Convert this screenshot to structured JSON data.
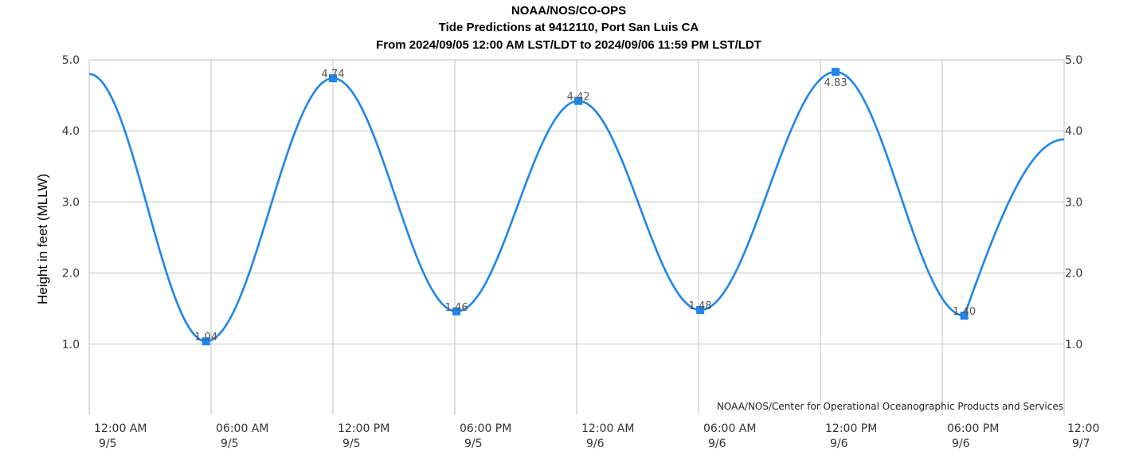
{
  "chart_data": {
    "type": "line",
    "title": [
      "NOAA/NOS/CO-OPS",
      "Tide Predictions at 9412110, Port San Luis CA",
      "From 2024/09/05 12:00 AM LST/LDT to 2024/09/06 11:59 PM LST/LDT"
    ],
    "ylabel": "Height in feet (MLLW)",
    "xlabel": "",
    "credit": "NOAA/NOS/Center for Operational Oceanographic Products and Services",
    "ylim": [
      0,
      5.0
    ],
    "yticks": [
      "1.0",
      "2.0",
      "3.0",
      "4.0",
      "5.0"
    ],
    "ytick_values": [
      1.0,
      2.0,
      3.0,
      4.0,
      5.0
    ],
    "xlim": [
      "2024-09-05 00:00",
      "2024-09-07 00:00"
    ],
    "xticks": [
      {
        "time": "2024-09-05 00:00",
        "line1": "12:00 AM",
        "line2": "9/5"
      },
      {
        "time": "2024-09-05 06:00",
        "line1": "06:00 AM",
        "line2": "9/5"
      },
      {
        "time": "2024-09-05 12:00",
        "line1": "12:00 PM",
        "line2": "9/5"
      },
      {
        "time": "2024-09-05 18:00",
        "line1": "06:00 PM",
        "line2": "9/5"
      },
      {
        "time": "2024-09-06 00:00",
        "line1": "12:00 AM",
        "line2": "9/6"
      },
      {
        "time": "2024-09-06 06:00",
        "line1": "06:00 AM",
        "line2": "9/6"
      },
      {
        "time": "2024-09-06 12:00",
        "line1": "12:00 PM",
        "line2": "9/6"
      },
      {
        "time": "2024-09-06 18:00",
        "line1": "06:00 PM",
        "line2": "9/6"
      },
      {
        "time": "2024-09-07 00:00",
        "line1": "12:00",
        "line2": "9/7"
      }
    ],
    "grid": true,
    "series": [
      {
        "color": "#1f86e8",
        "x": [
          "2024-09-05 00:00",
          "2024-09-05 05:45",
          "2024-09-05 12:00",
          "2024-09-05 18:05",
          "2024-09-06 00:05",
          "2024-09-06 06:05",
          "2024-09-06 12:45",
          "2024-09-06 19:05",
          "2024-09-07 00:00"
        ],
        "y": [
          4.8,
          1.04,
          4.74,
          1.46,
          4.42,
          1.48,
          4.83,
          1.4,
          3.88
        ]
      }
    ],
    "extrema": [
      {
        "time": "2024-09-05 05:45",
        "value": 1.04,
        "label": "1.04",
        "kind": "low"
      },
      {
        "time": "2024-09-05 12:00",
        "value": 4.74,
        "label": "4.74",
        "kind": "high"
      },
      {
        "time": "2024-09-05 18:05",
        "value": 1.46,
        "label": "1.46",
        "kind": "low"
      },
      {
        "time": "2024-09-06 00:05",
        "value": 4.42,
        "label": "4.42",
        "kind": "high"
      },
      {
        "time": "2024-09-06 06:05",
        "value": 1.48,
        "label": "1.48",
        "kind": "low"
      },
      {
        "time": "2024-09-06 12:45",
        "value": 4.83,
        "label": "4.83",
        "kind": "high"
      },
      {
        "time": "2024-09-06 19:05",
        "value": 1.4,
        "label": "1.40",
        "kind": "low"
      }
    ]
  }
}
